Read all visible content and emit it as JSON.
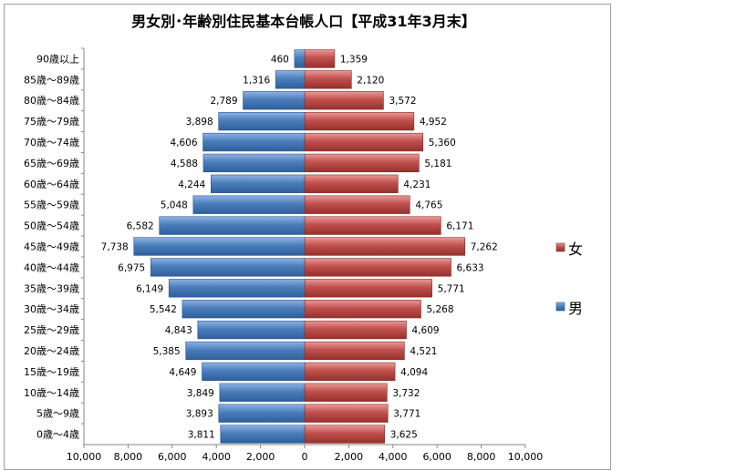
{
  "chart_data": {
    "type": "bar",
    "orientation": "horizontal",
    "layout": "population-pyramid",
    "title": "男女別･年齢別住民基本台帳人口【平成31年3月末】",
    "categories": [
      "0歳～4歳",
      "5歳～9歳",
      "10歳～14歳",
      "15歳～19歳",
      "20歳～24歳",
      "25歳～29歳",
      "30歳～34歳",
      "35歳～39歳",
      "40歳～44歳",
      "45歳～49歳",
      "50歳～54歳",
      "55歳～59歳",
      "60歳～64歳",
      "65歳～69歳",
      "70歳～74歳",
      "75歳～79歳",
      "80歳～84歳",
      "85歳～89歳",
      "90歳以上"
    ],
    "series": [
      {
        "name": "男",
        "direction": "left",
        "color": "#4a7ebb",
        "values": [
          3811,
          3893,
          3849,
          4649,
          5385,
          4843,
          5542,
          6149,
          6975,
          7738,
          6582,
          5048,
          4244,
          4588,
          4606,
          3898,
          2789,
          1316,
          460
        ],
        "labels": [
          "3,811",
          "3,893",
          "3,849",
          "4,649",
          "5,385",
          "4,843",
          "5,542",
          "6,149",
          "6,975",
          "7,738",
          "6,582",
          "5,048",
          "4,244",
          "4,588",
          "4,606",
          "3,898",
          "2,789",
          "1,316",
          "460"
        ]
      },
      {
        "name": "女",
        "direction": "right",
        "color": "#be4b48",
        "values": [
          3625,
          3771,
          3732,
          4094,
          4521,
          4609,
          5268,
          5771,
          6633,
          7262,
          6171,
          4765,
          4231,
          5181,
          5360,
          4952,
          3572,
          2120,
          1359
        ],
        "labels": [
          "3,625",
          "3,771",
          "3,732",
          "4,094",
          "4,521",
          "4,609",
          "5,268",
          "5,771",
          "6,633",
          "7,262",
          "6,171",
          "4,765",
          "4,231",
          "5,181",
          "5,360",
          "4,952",
          "3,572",
          "2,120",
          "1,359"
        ]
      }
    ],
    "xlim": [
      -10000,
      10000
    ],
    "x_ticks": [
      -10000,
      -8000,
      -6000,
      -4000,
      -2000,
      0,
      2000,
      4000,
      6000,
      8000,
      10000
    ],
    "x_tick_labels": [
      "10,000",
      "8,000",
      "6,000",
      "4,000",
      "2,000",
      "0",
      "2,000",
      "4,000",
      "6,000",
      "8,000",
      "10,000"
    ],
    "grid": false,
    "legend": {
      "position": "right",
      "entries": [
        "女",
        "男"
      ]
    }
  }
}
